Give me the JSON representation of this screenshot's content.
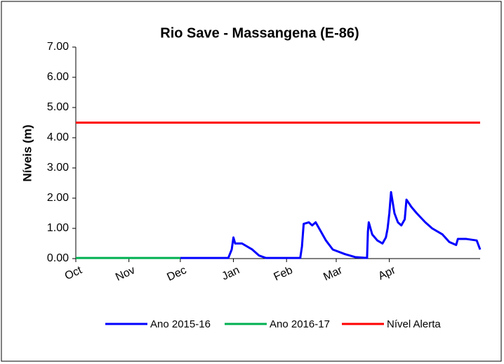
{
  "chart_data": {
    "type": "line",
    "title": "Rio Save - Massangena (E-86)",
    "y_label": "Níveis (m)",
    "xlim": [
      0,
      236
    ],
    "xticks": [
      {
        "value": 0,
        "label": "Oct"
      },
      {
        "value": 31,
        "label": "Nov"
      },
      {
        "value": 61,
        "label": "Dec"
      },
      {
        "value": 92,
        "label": "Jan"
      },
      {
        "value": 123,
        "label": "Feb"
      },
      {
        "value": 152,
        "label": "Mar"
      },
      {
        "value": 183,
        "label": "Apr"
      }
    ],
    "ylim": [
      0,
      7
    ],
    "yticks": [
      {
        "value": 0,
        "label": "0.00"
      },
      {
        "value": 1,
        "label": "1.00"
      },
      {
        "value": 2,
        "label": "2.00"
      },
      {
        "value": 3,
        "label": "3.00"
      },
      {
        "value": 4,
        "label": "4.00"
      },
      {
        "value": 5,
        "label": "5.00"
      },
      {
        "value": 6,
        "label": "6.00"
      },
      {
        "value": 7,
        "label": "7.00"
      }
    ],
    "legend": "bottom",
    "series": [
      {
        "name": "Ano 2015-16",
        "color": "#0000ff",
        "x": [
          61,
          89,
          91,
          92,
          93,
          97,
          103,
          107,
          111,
          131,
          132,
          133,
          136,
          138,
          140,
          143,
          146,
          150,
          157,
          163,
          170,
          170.5,
          171,
          173,
          176,
          179,
          181,
          182,
          183,
          184,
          186,
          188,
          190,
          192,
          193,
          196,
          199,
          204,
          208,
          214,
          218,
          222,
          223,
          228,
          234,
          236
        ],
        "values": [
          0.02,
          0.02,
          0.3,
          0.7,
          0.5,
          0.5,
          0.3,
          0.1,
          0.02,
          0.02,
          0.4,
          1.15,
          1.2,
          1.1,
          1.2,
          0.9,
          0.6,
          0.3,
          0.15,
          0.05,
          0.02,
          0.9,
          1.2,
          0.8,
          0.6,
          0.5,
          0.7,
          1.0,
          1.5,
          2.2,
          1.5,
          1.2,
          1.1,
          1.3,
          1.95,
          1.7,
          1.5,
          1.2,
          1.0,
          0.8,
          0.55,
          0.45,
          0.65,
          0.65,
          0.6,
          0.3
        ]
      },
      {
        "name": "Ano 2016-17",
        "color": "#00b050",
        "x": [
          0,
          61
        ],
        "values": [
          0.02,
          0.02
        ]
      },
      {
        "name": "Nível Alerta",
        "color": "#ff0000",
        "x": [
          0,
          236
        ],
        "values": [
          4.5,
          4.5
        ]
      }
    ]
  }
}
